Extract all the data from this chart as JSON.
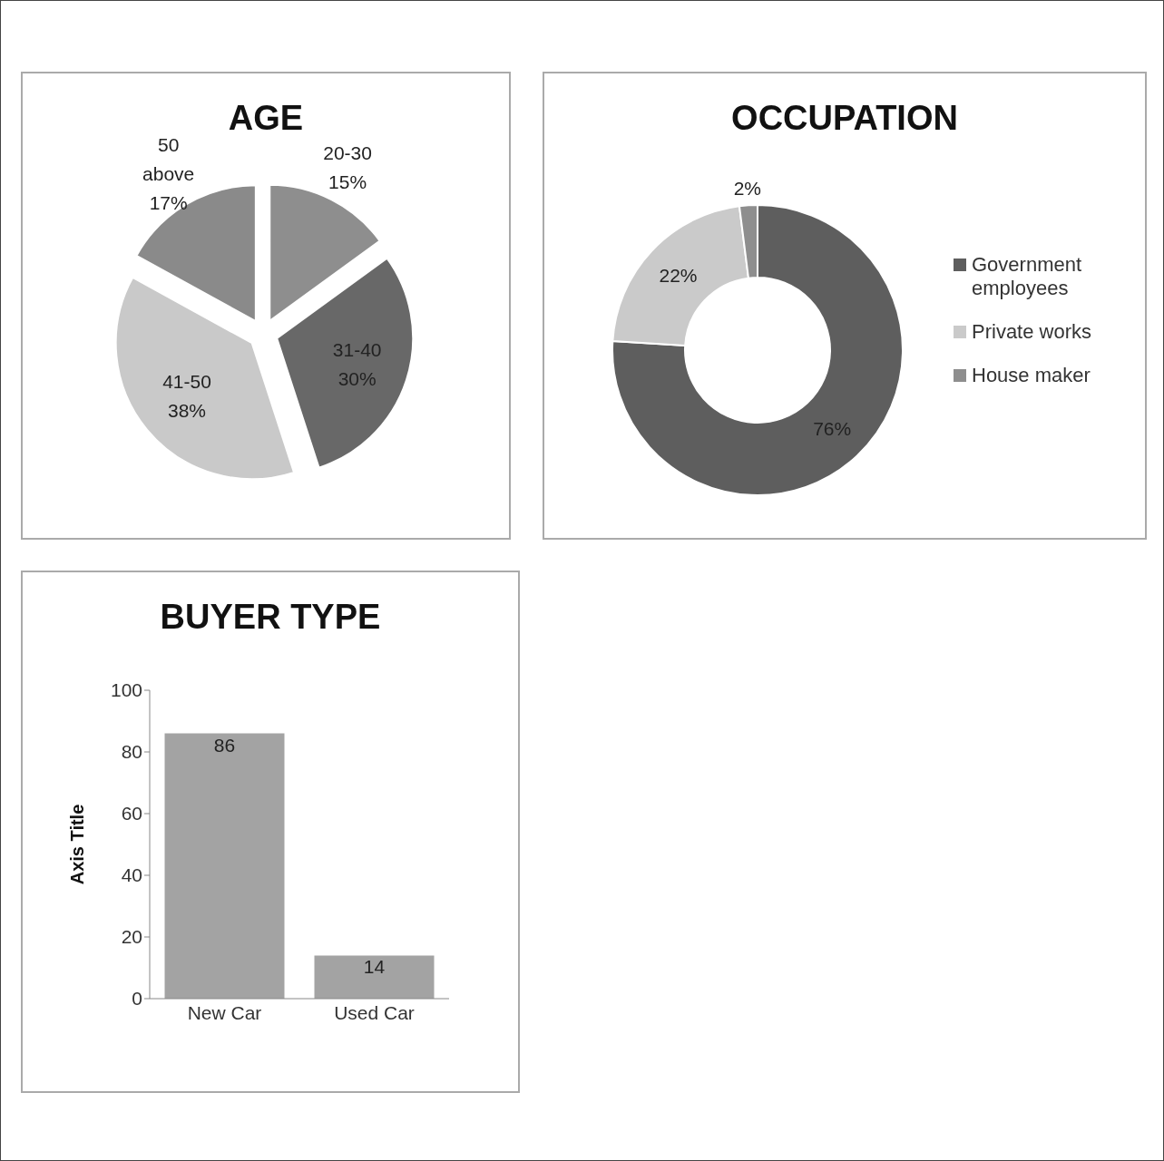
{
  "chart_data": [
    {
      "type": "pie",
      "title": "AGE",
      "categories": [
        "20-30",
        "31-40",
        "41-50",
        "50 above"
      ],
      "values": [
        15,
        30,
        38,
        17
      ],
      "value_labels": [
        "15%",
        "30%",
        "38%",
        "17%"
      ],
      "colors": [
        "#8e8e8e",
        "#686868",
        "#c9c9c9",
        "#8a8a8a"
      ],
      "legend": false
    },
    {
      "type": "donut",
      "title": "OCCUPATION",
      "categories": [
        "Government employees",
        "Private works",
        "House maker"
      ],
      "values": [
        76,
        22,
        2
      ],
      "value_labels": [
        "76%",
        "22%",
        "2%"
      ],
      "colors": [
        "#5e5e5e",
        "#cacaca",
        "#8e8e8e"
      ],
      "legend": "right"
    },
    {
      "type": "bar",
      "title": "BUYER TYPE",
      "categories": [
        "New Car",
        "Used Car"
      ],
      "values": [
        86,
        14
      ],
      "color": "#a3a3a3",
      "ylabel": "Axis Title",
      "ylim": [
        0,
        100
      ],
      "yticks": [
        0,
        20,
        40,
        60,
        80,
        100
      ],
      "data_labels": true
    }
  ]
}
